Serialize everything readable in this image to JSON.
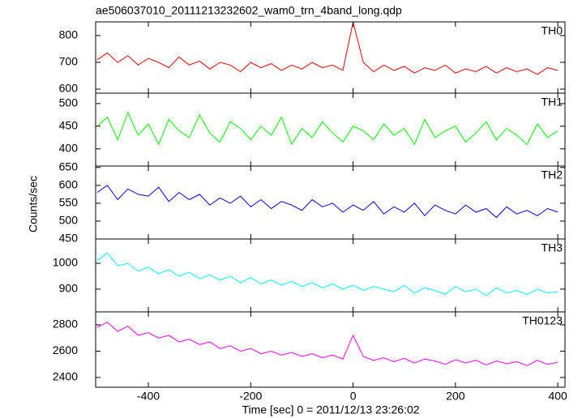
{
  "chart_data": {
    "type": "stacked-line",
    "title": "ae506037010_20111213232602_wam0_trn_4band_long.qdp",
    "x_label": "Time [sec] 0 = 2011/12/13 23:26:02",
    "y_label": "Counts/sec",
    "xlim": [
      -503,
      414
    ],
    "xticks": [
      -400,
      -200,
      0,
      200,
      400
    ],
    "x": [
      -500,
      -480,
      -460,
      -440,
      -420,
      -400,
      -380,
      -360,
      -340,
      -320,
      -300,
      -280,
      -260,
      -240,
      -220,
      -200,
      -180,
      -160,
      -140,
      -120,
      -100,
      -80,
      -60,
      -40,
      -20,
      0,
      20,
      40,
      60,
      80,
      100,
      120,
      140,
      160,
      180,
      200,
      220,
      240,
      260,
      280,
      300,
      320,
      340,
      360,
      380,
      400
    ],
    "series": [
      {
        "name": "TH0",
        "color": "#ff0000",
        "ylim": [
          585,
          851
        ],
        "yticks": [
          600,
          700,
          800
        ],
        "values": [
          710,
          735,
          700,
          725,
          690,
          715,
          700,
          680,
          720,
          690,
          705,
          675,
          700,
          690,
          665,
          700,
          680,
          695,
          670,
          690,
          675,
          700,
          680,
          690,
          670,
          850,
          700,
          665,
          690,
          670,
          685,
          660,
          680,
          670,
          690,
          660,
          675,
          665,
          685,
          660,
          680,
          665,
          675,
          655,
          680,
          670
        ]
      },
      {
        "name": "TH1",
        "color": "#00ff00",
        "ylim": [
          362,
          523
        ],
        "yticks": [
          400,
          450,
          500
        ],
        "values": [
          450,
          470,
          420,
          480,
          430,
          455,
          410,
          465,
          440,
          425,
          475,
          435,
          415,
          460,
          445,
          420,
          450,
          430,
          470,
          410,
          445,
          425,
          460,
          435,
          415,
          450,
          440,
          420,
          455,
          430,
          445,
          410,
          465,
          425,
          440,
          450,
          415,
          435,
          460,
          420,
          445,
          430,
          410,
          455,
          425,
          440
        ]
      },
      {
        "name": "TH2",
        "color": "#0000ff",
        "ylim": [
          450,
          654
        ],
        "yticks": [
          450,
          500,
          550,
          600,
          650
        ],
        "values": [
          580,
          600,
          560,
          590,
          575,
          570,
          595,
          555,
          580,
          560,
          575,
          545,
          565,
          550,
          570,
          540,
          560,
          535,
          555,
          545,
          530,
          560,
          540,
          550,
          525,
          545,
          530,
          555,
          520,
          540,
          525,
          550,
          515,
          545,
          530,
          520,
          545,
          525,
          535,
          510,
          540,
          520,
          530,
          515,
          535,
          525
        ]
      },
      {
        "name": "TH3",
        "color": "#00ffff",
        "ylim": [
          812,
          1094
        ],
        "yticks": [
          900,
          1000
        ],
        "values": [
          1010,
          1040,
          990,
          1000,
          970,
          985,
          960,
          975,
          950,
          965,
          940,
          955,
          935,
          950,
          925,
          945,
          920,
          935,
          915,
          930,
          910,
          925,
          905,
          920,
          900,
          915,
          895,
          910,
          900,
          890,
          915,
          885,
          905,
          895,
          880,
          910,
          890,
          900,
          875,
          905,
          885,
          895,
          880,
          900,
          885,
          890
        ]
      },
      {
        "name": "TH0123",
        "color": "#ff00ff",
        "ylim": [
          2326,
          2898
        ],
        "yticks": [
          2400,
          2600,
          2800
        ],
        "values": [
          2780,
          2820,
          2750,
          2790,
          2720,
          2740,
          2700,
          2720,
          2670,
          2690,
          2650,
          2670,
          2620,
          2640,
          2600,
          2620,
          2580,
          2600,
          2570,
          2590,
          2560,
          2580,
          2550,
          2570,
          2540,
          2720,
          2560,
          2530,
          2550,
          2520,
          2545,
          2510,
          2540,
          2525,
          2500,
          2535,
          2510,
          2530,
          2495,
          2525,
          2505,
          2520,
          2490,
          2530,
          2500,
          2515
        ]
      }
    ]
  }
}
